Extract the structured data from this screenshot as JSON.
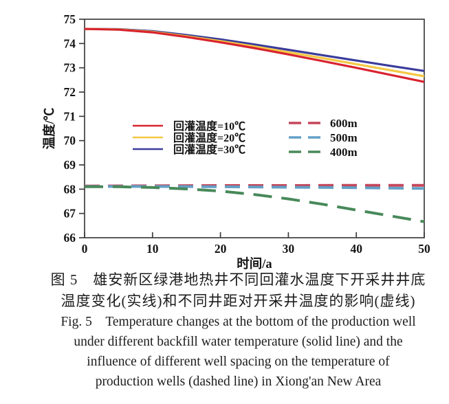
{
  "figure": {
    "caption_cn": [
      "图 5　雄安新区绿港地热井不同回灌水温度下开采井井底",
      "温度变化(实线)和不同井距对开采井温度的影响(虚线)"
    ],
    "caption_en": [
      "Fig. 5　Temperature changes at the bottom of the production well",
      "under different backfill water temperature (solid line) and the",
      "influence of different well spacing on the temperature of",
      "production wells (dashed line) in Xiong'an New Area"
    ]
  },
  "chart_data": {
    "type": "line",
    "title": "",
    "xlabel": "时间/a",
    "ylabel": "温度/℃",
    "xlim": [
      0,
      50
    ],
    "ylim": [
      66,
      75
    ],
    "xticks": [
      0,
      10,
      20,
      30,
      40,
      50
    ],
    "yticks": [
      66,
      67,
      68,
      69,
      70,
      71,
      72,
      73,
      74,
      75
    ],
    "grid": false,
    "legend_position": "center-inside, two groups: solid group left-center, dashed group right-center",
    "axis_color": "#3d3d3d",
    "series": [
      {
        "name": "回灌温度=10℃",
        "color": "#d8232f",
        "dash": false,
        "legend_group": "solid",
        "x": [
          0,
          5,
          10,
          15,
          20,
          25,
          30,
          35,
          40,
          45,
          50
        ],
        "y": [
          74.6,
          74.57,
          74.46,
          74.27,
          74.05,
          73.81,
          73.55,
          73.28,
          73.0,
          72.71,
          72.42
        ]
      },
      {
        "name": "回灌温度=20℃",
        "color": "#f4c844",
        "dash": false,
        "legend_group": "solid",
        "x": [
          0,
          5,
          10,
          15,
          20,
          25,
          30,
          35,
          40,
          45,
          50
        ],
        "y": [
          74.6,
          74.58,
          74.48,
          74.3,
          74.1,
          73.88,
          73.64,
          73.4,
          73.15,
          72.9,
          72.65
        ]
      },
      {
        "name": "回灌温度=30℃",
        "color": "#3b3c9b",
        "dash": false,
        "legend_group": "solid",
        "x": [
          0,
          5,
          10,
          15,
          20,
          25,
          30,
          35,
          40,
          45,
          50
        ],
        "y": [
          74.6,
          74.59,
          74.51,
          74.35,
          74.17,
          73.96,
          73.74,
          73.52,
          73.3,
          73.08,
          72.87
        ]
      },
      {
        "name": "600m",
        "color": "#c5465a",
        "dash": true,
        "legend_group": "dashed",
        "x": [
          0,
          10,
          20,
          30,
          40,
          50
        ],
        "y": [
          68.13,
          68.14,
          68.15,
          68.15,
          68.16,
          68.16
        ]
      },
      {
        "name": "500m",
        "color": "#64a0c6",
        "dash": true,
        "legend_group": "dashed",
        "x": [
          0,
          10,
          20,
          30,
          40,
          50
        ],
        "y": [
          68.11,
          68.11,
          68.1,
          68.08,
          68.06,
          68.03
        ]
      },
      {
        "name": "400m",
        "color": "#48895a",
        "dash": true,
        "legend_group": "dashed",
        "x": [
          0,
          5,
          10,
          15,
          20,
          25,
          30,
          35,
          40,
          45,
          50
        ],
        "y": [
          68.1,
          68.1,
          68.07,
          68.01,
          67.92,
          67.78,
          67.6,
          67.38,
          67.14,
          66.9,
          66.66
        ]
      }
    ]
  }
}
